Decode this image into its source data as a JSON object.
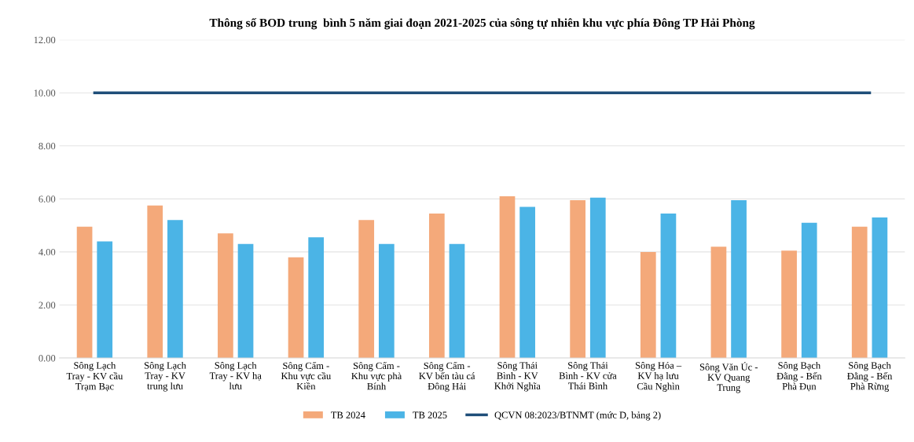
{
  "chart_data": {
    "type": "bar",
    "title": "Thông số BOD trung  bình 5 năm giai đoạn 2021-2025 của sông tự nhiên khu vực phía Đông TP Hải Phòng",
    "categories": [
      "Sông Lạch\nTray - KV cầu\nTrạm Bạc",
      "Sông Lạch\nTray - KV\ntrung lưu",
      "Sông Lạch\nTray - KV hạ\nlưu",
      "Sông Cấm -\nKhu vực cầu\nKiền",
      "Sông Cấm -\nKhu vực phà\nBính",
      "Sông Cấm -\nKV bến tàu cá\nĐông Hải",
      "Sông Thái\nBình - KV\nKhởi Nghĩa",
      "Sông Thái\nBình - KV cửa\nThái Bình",
      "Sông Hóa –\nKV hạ lưu\nCầu Nghìn",
      "Sông Văn Úc -\nKV Quang\nTrung",
      "Sông Bạch\nĐằng - Bến\nPhà Đụn",
      "Sông Bạch\nĐằng - Bến\nPhà Rừng"
    ],
    "series": [
      {
        "name": "TB 2024",
        "color": "#f4a97a",
        "values": [
          4.95,
          5.75,
          4.7,
          3.8,
          5.2,
          5.45,
          6.1,
          5.95,
          4.0,
          4.2,
          4.05,
          4.95
        ]
      },
      {
        "name": "TB 2025",
        "color": "#4bb4e6",
        "values": [
          4.4,
          5.2,
          4.3,
          4.55,
          4.3,
          4.3,
          5.7,
          6.05,
          5.45,
          5.95,
          5.1,
          5.3
        ]
      },
      {
        "name": "QCVN 08:2023/BTNMT (mức D, bảng 2)",
        "type": "line",
        "color": "#1f4e79",
        "values": [
          10,
          10,
          10,
          10,
          10,
          10,
          10,
          10,
          10,
          10,
          10,
          10
        ]
      }
    ],
    "ylim": [
      0,
      12
    ],
    "yticks": [
      {
        "value": 0,
        "label": "0.00"
      },
      {
        "value": 2,
        "label": "2.00"
      },
      {
        "value": 4,
        "label": "4.00"
      },
      {
        "value": 6,
        "label": "6.00"
      },
      {
        "value": 8,
        "label": "8.00"
      },
      {
        "value": 10,
        "label": "10.00"
      },
      {
        "value": 12,
        "label": "12.00"
      }
    ],
    "grid": "y",
    "legend": "bottom"
  }
}
